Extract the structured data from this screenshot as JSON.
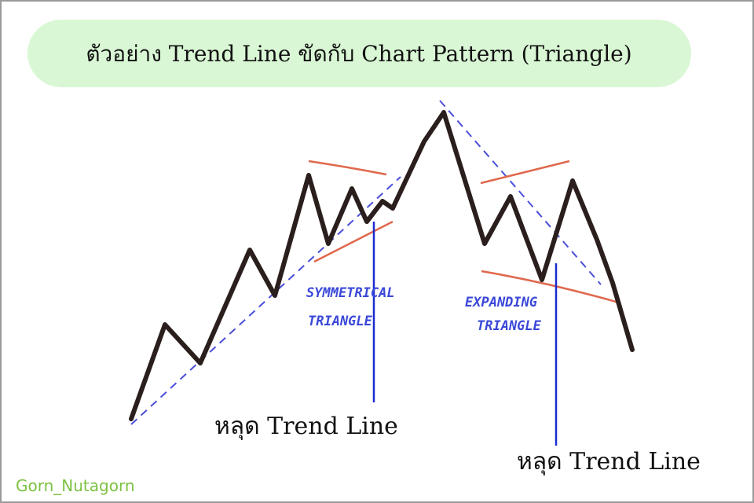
{
  "header": {
    "title": "ตัวอย่าง Trend Line ขัดกับ Chart Pattern (Triangle)"
  },
  "patterns": [
    {
      "lines": [
        "SYMMETRICAL",
        "TRIANGLE"
      ]
    },
    {
      "lines": [
        "EXPANDING",
        "TRIANGLE"
      ]
    }
  ],
  "callouts": [
    {
      "label": "หลุด Trend Line"
    },
    {
      "label": "หลุด Trend Line"
    }
  ],
  "logo": {
    "text": "Gorn_Nutagorn"
  }
}
